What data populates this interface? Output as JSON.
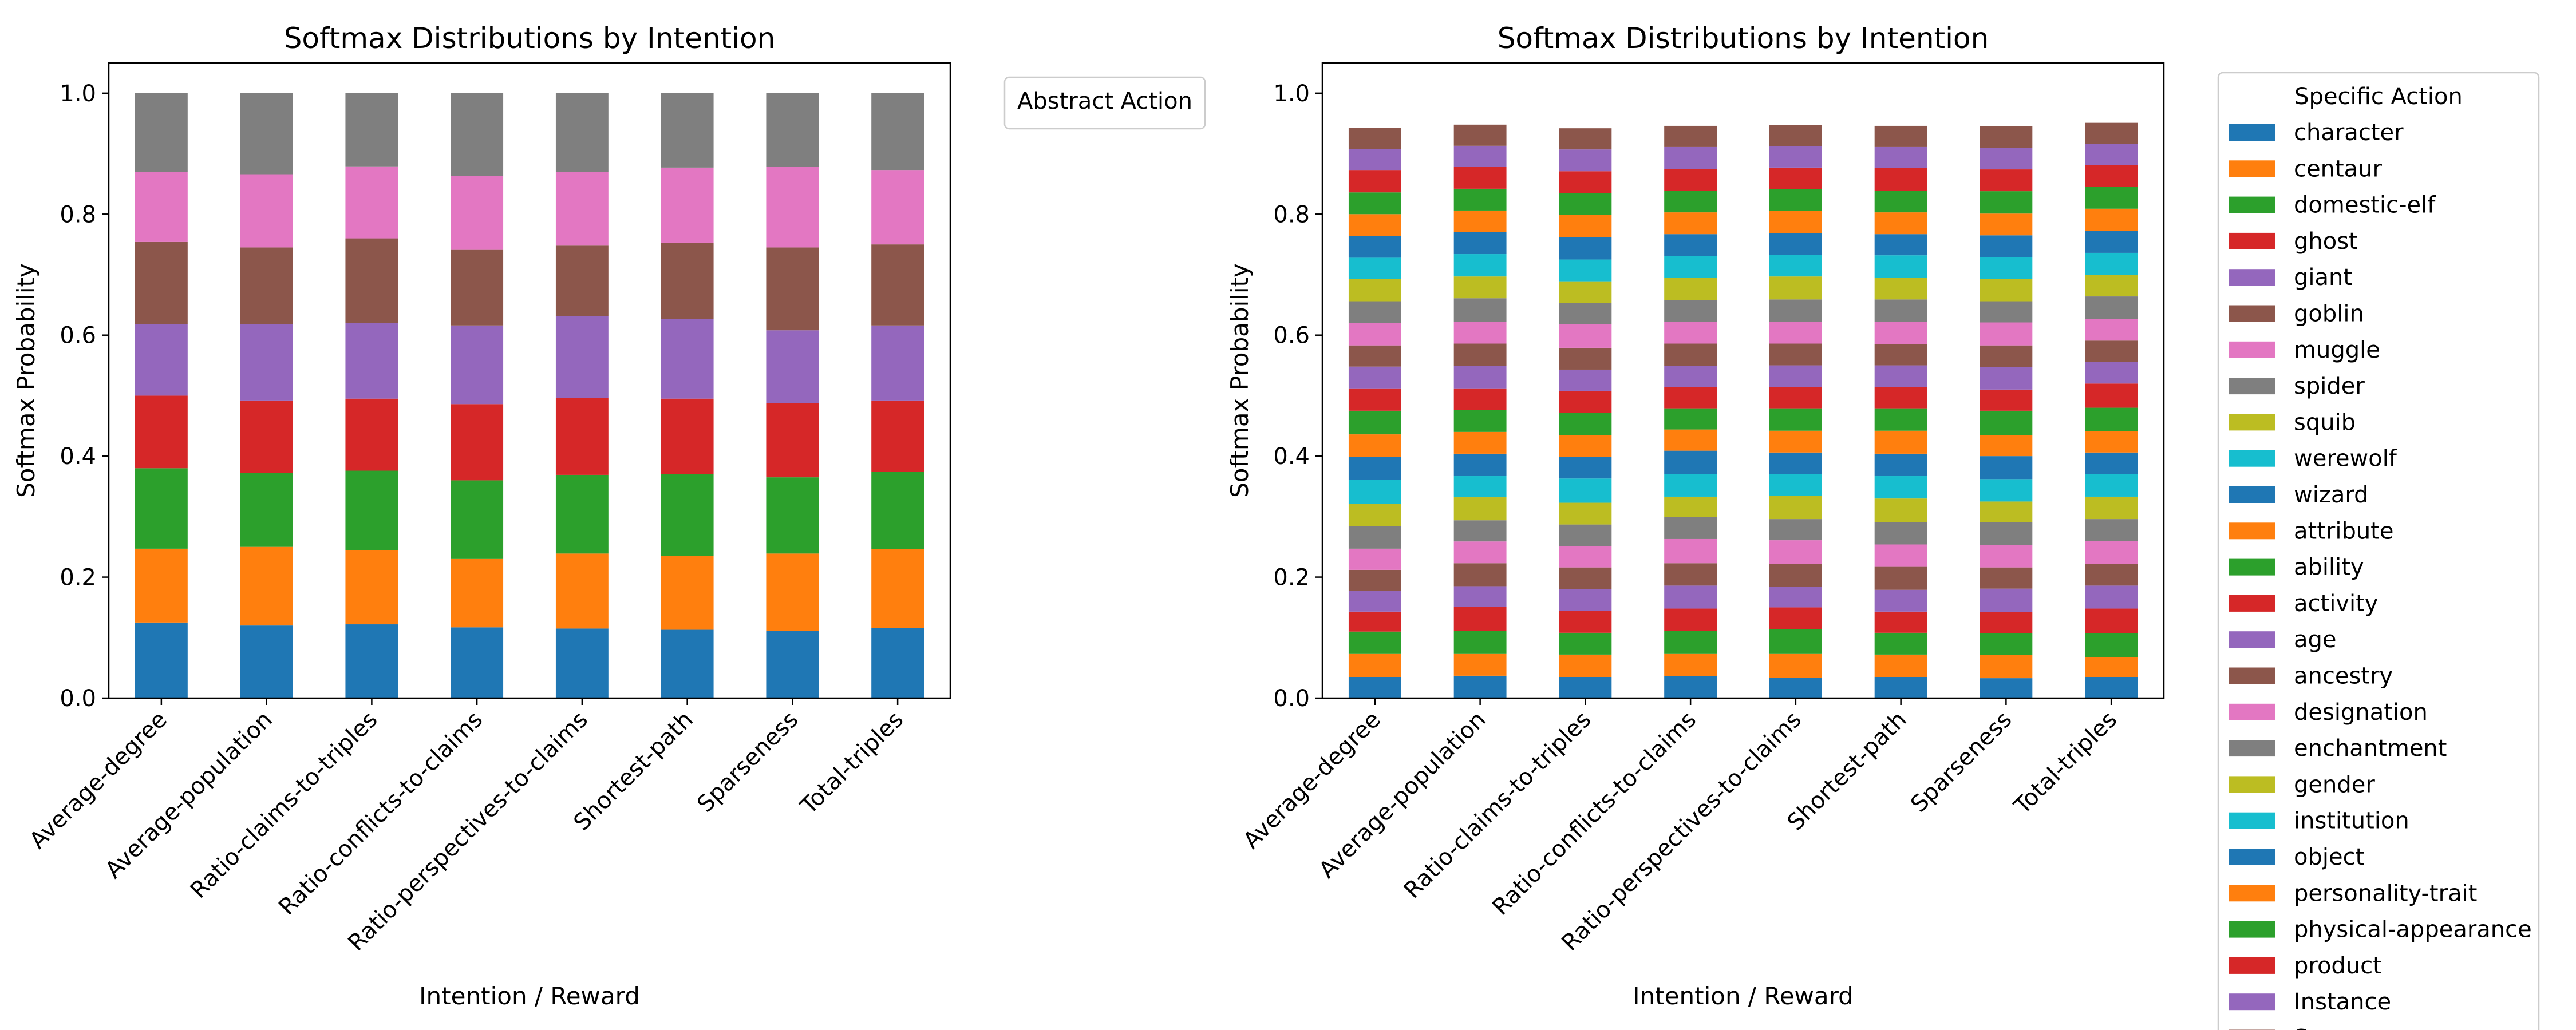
{
  "chart_data": [
    {
      "type": "bar",
      "stacked": true,
      "title": "Softmax Distributions by Intention",
      "xlabel": "Intention / Reward",
      "ylabel": "Softmax Probability",
      "ylim": [
        0,
        1.05
      ],
      "yticks": [
        0.0,
        0.2,
        0.4,
        0.6,
        0.8,
        1.0
      ],
      "categories": [
        "Average-degree",
        "Average-population",
        "Ratio-claims-to-triples",
        "Ratio-conflicts-to-claims",
        "Ratio-perspectives-to-claims",
        "Shortest-path",
        "Sparseness",
        "Total-triples"
      ],
      "legend": {
        "title": "Abstract Action",
        "placement": "outside-upper-right",
        "entries": []
      },
      "grid": false,
      "series": [
        {
          "color": "#1f77b4",
          "values": [
            0.125,
            0.12,
            0.122,
            0.117,
            0.115,
            0.113,
            0.111,
            0.116
          ]
        },
        {
          "color": "#ff7f0e",
          "values": [
            0.122,
            0.13,
            0.123,
            0.113,
            0.124,
            0.122,
            0.128,
            0.13
          ]
        },
        {
          "color": "#2ca02c",
          "values": [
            0.133,
            0.122,
            0.131,
            0.13,
            0.13,
            0.135,
            0.126,
            0.128
          ]
        },
        {
          "color": "#d62728",
          "values": [
            0.12,
            0.12,
            0.119,
            0.126,
            0.127,
            0.125,
            0.123,
            0.118
          ]
        },
        {
          "color": "#9467bd",
          "values": [
            0.118,
            0.126,
            0.125,
            0.13,
            0.135,
            0.132,
            0.12,
            0.124
          ]
        },
        {
          "color": "#8c564b",
          "values": [
            0.136,
            0.127,
            0.14,
            0.125,
            0.117,
            0.126,
            0.137,
            0.134
          ]
        },
        {
          "color": "#e377c2",
          "values": [
            0.116,
            0.121,
            0.119,
            0.122,
            0.122,
            0.124,
            0.133,
            0.123
          ]
        },
        {
          "color": "#7f7f7f",
          "values": [
            0.13,
            0.134,
            0.121,
            0.137,
            0.13,
            0.123,
            0.122,
            0.127
          ]
        }
      ]
    },
    {
      "type": "bar",
      "stacked": true,
      "title": "Softmax Distributions by Intention",
      "xlabel": "Intention / Reward",
      "ylabel": "Softmax Probability",
      "ylim": [
        0,
        1.05
      ],
      "yticks": [
        0.0,
        0.2,
        0.4,
        0.6,
        0.8,
        1.0
      ],
      "categories": [
        "Average-degree",
        "Average-population",
        "Ratio-claims-to-triples",
        "Ratio-conflicts-to-claims",
        "Ratio-perspectives-to-claims",
        "Shortest-path",
        "Sparseness",
        "Total-triples"
      ],
      "legend": {
        "title": "Specific Action",
        "placement": "outside-upper-right",
        "entries": [
          {
            "name": "character",
            "color": "#1f77b4"
          },
          {
            "name": "centaur",
            "color": "#ff7f0e"
          },
          {
            "name": "domestic-elf",
            "color": "#2ca02c"
          },
          {
            "name": "ghost",
            "color": "#d62728"
          },
          {
            "name": "giant",
            "color": "#9467bd"
          },
          {
            "name": "goblin",
            "color": "#8c564b"
          },
          {
            "name": "muggle",
            "color": "#e377c2"
          },
          {
            "name": "spider",
            "color": "#7f7f7f"
          },
          {
            "name": "squib",
            "color": "#bcbd22"
          },
          {
            "name": "werewolf",
            "color": "#17becf"
          },
          {
            "name": "wizard",
            "color": "#1f77b4"
          },
          {
            "name": "attribute",
            "color": "#ff7f0e"
          },
          {
            "name": "ability",
            "color": "#2ca02c"
          },
          {
            "name": "activity",
            "color": "#d62728"
          },
          {
            "name": "age",
            "color": "#9467bd"
          },
          {
            "name": "ancestry",
            "color": "#8c564b"
          },
          {
            "name": "designation",
            "color": "#e377c2"
          },
          {
            "name": "enchantment",
            "color": "#7f7f7f"
          },
          {
            "name": "gender",
            "color": "#bcbd22"
          },
          {
            "name": "institution",
            "color": "#17becf"
          },
          {
            "name": "object",
            "color": "#1f77b4"
          },
          {
            "name": "personality-trait",
            "color": "#ff7f0e"
          },
          {
            "name": "physical-appearance",
            "color": "#2ca02c"
          },
          {
            "name": "product",
            "color": "#d62728"
          },
          {
            "name": "Instance",
            "color": "#9467bd"
          },
          {
            "name": "Source",
            "color": "#8c564b"
          }
        ]
      },
      "grid": false,
      "series": [
        {
          "name": "character",
          "color": "#1f77b4",
          "values": [
            0.035,
            0.037,
            0.035,
            0.036,
            0.034,
            0.035,
            0.033,
            0.035
          ]
        },
        {
          "name": "centaur",
          "color": "#ff7f0e",
          "values": [
            0.038,
            0.036,
            0.037,
            0.037,
            0.039,
            0.037,
            0.038,
            0.033
          ]
        },
        {
          "name": "domestic-elf",
          "color": "#2ca02c",
          "values": [
            0.037,
            0.038,
            0.036,
            0.038,
            0.041,
            0.036,
            0.036,
            0.039
          ]
        },
        {
          "name": "ghost",
          "color": "#d62728",
          "values": [
            0.033,
            0.04,
            0.036,
            0.037,
            0.036,
            0.035,
            0.035,
            0.041
          ]
        },
        {
          "name": "giant",
          "color": "#9467bd",
          "values": [
            0.034,
            0.034,
            0.036,
            0.038,
            0.034,
            0.036,
            0.039,
            0.038
          ]
        },
        {
          "name": "goblin",
          "color": "#8c564b",
          "values": [
            0.035,
            0.038,
            0.036,
            0.037,
            0.038,
            0.038,
            0.035,
            0.036
          ]
        },
        {
          "name": "muggle",
          "color": "#e377c2",
          "values": [
            0.035,
            0.036,
            0.035,
            0.04,
            0.039,
            0.037,
            0.037,
            0.038
          ]
        },
        {
          "name": "spider",
          "color": "#7f7f7f",
          "values": [
            0.037,
            0.035,
            0.036,
            0.036,
            0.035,
            0.037,
            0.038,
            0.036
          ]
        },
        {
          "name": "squib",
          "color": "#bcbd22",
          "values": [
            0.037,
            0.038,
            0.036,
            0.034,
            0.038,
            0.039,
            0.034,
            0.037
          ]
        },
        {
          "name": "werewolf",
          "color": "#17becf",
          "values": [
            0.04,
            0.035,
            0.04,
            0.037,
            0.036,
            0.037,
            0.037,
            0.037
          ]
        },
        {
          "name": "wizard",
          "color": "#1f77b4",
          "values": [
            0.038,
            0.037,
            0.036,
            0.039,
            0.036,
            0.037,
            0.038,
            0.036
          ]
        },
        {
          "name": "attribute",
          "color": "#ff7f0e",
          "values": [
            0.037,
            0.036,
            0.036,
            0.035,
            0.036,
            0.038,
            0.035,
            0.035
          ]
        },
        {
          "name": "ability",
          "color": "#2ca02c",
          "values": [
            0.039,
            0.036,
            0.037,
            0.035,
            0.037,
            0.037,
            0.04,
            0.039
          ]
        },
        {
          "name": "activity",
          "color": "#d62728",
          "values": [
            0.037,
            0.036,
            0.036,
            0.035,
            0.035,
            0.035,
            0.035,
            0.04
          ]
        },
        {
          "name": "age",
          "color": "#9467bd",
          "values": [
            0.036,
            0.037,
            0.035,
            0.035,
            0.036,
            0.036,
            0.037,
            0.036
          ]
        },
        {
          "name": "ancestry",
          "color": "#8c564b",
          "values": [
            0.035,
            0.037,
            0.036,
            0.037,
            0.036,
            0.035,
            0.036,
            0.035
          ]
        },
        {
          "name": "designation",
          "color": "#e377c2",
          "values": [
            0.037,
            0.036,
            0.039,
            0.036,
            0.036,
            0.037,
            0.038,
            0.036
          ]
        },
        {
          "name": "enchantment",
          "color": "#7f7f7f",
          "values": [
            0.036,
            0.039,
            0.035,
            0.036,
            0.037,
            0.037,
            0.035,
            0.037
          ]
        },
        {
          "name": "gender",
          "color": "#bcbd22",
          "values": [
            0.037,
            0.036,
            0.036,
            0.037,
            0.038,
            0.036,
            0.037,
            0.036
          ]
        },
        {
          "name": "institution",
          "color": "#17becf",
          "values": [
            0.035,
            0.037,
            0.036,
            0.036,
            0.036,
            0.037,
            0.036,
            0.036
          ]
        },
        {
          "name": "object",
          "color": "#1f77b4",
          "values": [
            0.036,
            0.036,
            0.037,
            0.036,
            0.036,
            0.035,
            0.036,
            0.036
          ]
        },
        {
          "name": "personality-trait",
          "color": "#ff7f0e",
          "values": [
            0.036,
            0.036,
            0.037,
            0.036,
            0.036,
            0.036,
            0.036,
            0.037
          ]
        },
        {
          "name": "physical-appearance",
          "color": "#2ca02c",
          "values": [
            0.036,
            0.036,
            0.036,
            0.036,
            0.036,
            0.036,
            0.037,
            0.036
          ]
        },
        {
          "name": "product",
          "color": "#d62728",
          "values": [
            0.037,
            0.036,
            0.036,
            0.036,
            0.036,
            0.037,
            0.036,
            0.036
          ]
        },
        {
          "name": "Instance",
          "color": "#9467bd",
          "values": [
            0.035,
            0.035,
            0.036,
            0.036,
            0.035,
            0.035,
            0.036,
            0.035
          ]
        },
        {
          "name": "Source",
          "color": "#8c564b",
          "values": [
            0.035,
            0.035,
            0.035,
            0.035,
            0.035,
            0.035,
            0.035,
            0.035
          ]
        }
      ]
    }
  ]
}
